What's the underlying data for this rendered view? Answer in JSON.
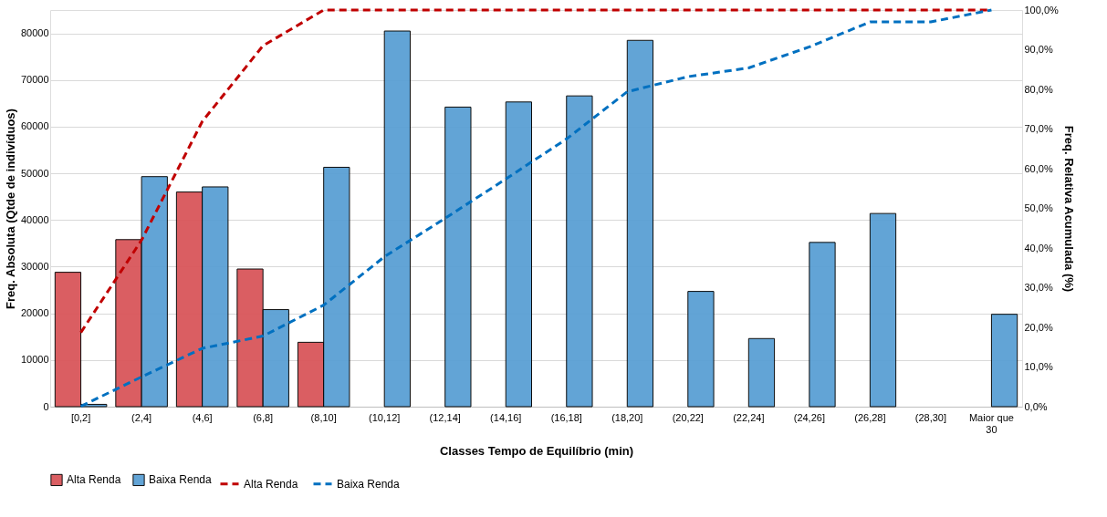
{
  "chart_data": {
    "type": "bar",
    "xlabel": "Classes Tempo de Equilíbrio (min)",
    "ylabel": "Freq. Absoluta (Qtde de indivíduos)",
    "y2label": "Freq. Relativa Acumulada (%)",
    "categories": [
      "[0,2]",
      "(2,4]",
      "(4,6]",
      "(6,8]",
      "(8,10]",
      "(10,12]",
      "(12,14]",
      "(14,16]",
      "(16,18]",
      "(18,20]",
      "(20,22]",
      "(22,24]",
      "(24,26]",
      "(26,28]",
      "(28,30]",
      "Maior que 30"
    ],
    "series": [
      {
        "name": "Alta Renda",
        "color": "#d9565a",
        "values": [
          28800,
          35800,
          46000,
          29500,
          13800,
          null,
          null,
          null,
          null,
          null,
          null,
          null,
          null,
          null,
          null,
          null
        ]
      },
      {
        "name": "Baixa Renda",
        "color": "#5aa0d4",
        "values": [
          500,
          49300,
          47100,
          20800,
          51300,
          80500,
          64200,
          65300,
          66600,
          78500,
          24700,
          14600,
          35200,
          41400,
          null,
          19800
        ]
      },
      {
        "name": "Alta Renda",
        "type": "line",
        "axis": "y2",
        "line_style": "dashed",
        "color": "#c00000",
        "values": [
          18.7,
          42.0,
          71.9,
          91.0,
          100,
          100,
          100,
          100,
          100,
          100,
          100,
          100,
          100,
          100,
          100,
          100
        ]
      },
      {
        "name": "Baixa Renda",
        "type": "line",
        "axis": "y2",
        "line_style": "dashed",
        "color": "#0070c0",
        "values": [
          0.1,
          7.5,
          14.7,
          17.8,
          25.6,
          37.8,
          47.5,
          57.4,
          67.5,
          79.4,
          83.2,
          85.4,
          90.7,
          97.0,
          97.0,
          100
        ]
      }
    ],
    "ylim": [
      0,
      85000
    ],
    "yticks": [
      0,
      10000,
      20000,
      30000,
      40000,
      50000,
      60000,
      70000,
      80000
    ],
    "y2lim": [
      0,
      100
    ],
    "y2ticks": [
      {
        "value": 0,
        "label": "0,0%"
      },
      {
        "value": 10,
        "label": "10,0%"
      },
      {
        "value": 20,
        "label": "20,0%"
      },
      {
        "value": 30,
        "label": "30,0%"
      },
      {
        "value": 40,
        "label": "40,0%"
      },
      {
        "value": 50,
        "label": "50,0%"
      },
      {
        "value": 60,
        "label": "60,0%"
      },
      {
        "value": 70,
        "label": "70,0%"
      },
      {
        "value": 80,
        "label": "80,0%"
      },
      {
        "value": 90,
        "label": "90,0%"
      },
      {
        "value": 100,
        "label": "100,0%"
      }
    ],
    "grid": "y",
    "legend": "bottom"
  }
}
